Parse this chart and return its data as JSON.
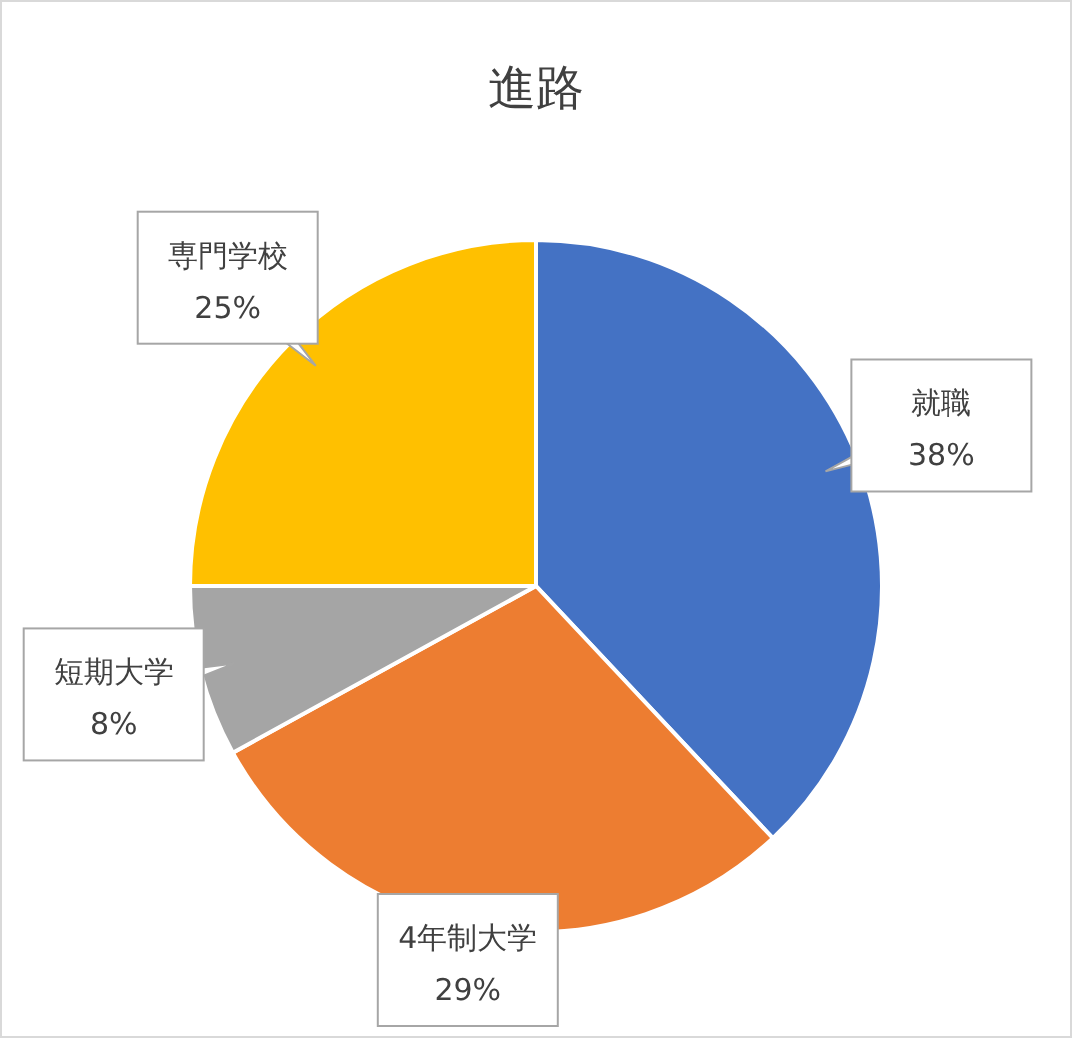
{
  "chart_data": {
    "type": "pie",
    "title": "進路",
    "categories": [
      "就職",
      "4年制大学",
      "短期大学",
      "専門学校"
    ],
    "values": [
      38,
      29,
      8,
      25
    ],
    "colors": [
      "#4472c4",
      "#ed7d31",
      "#a5a5a5",
      "#ffc000"
    ],
    "value_labels": [
      "38%",
      "29%",
      "8%",
      "25%"
    ],
    "legend": false
  }
}
